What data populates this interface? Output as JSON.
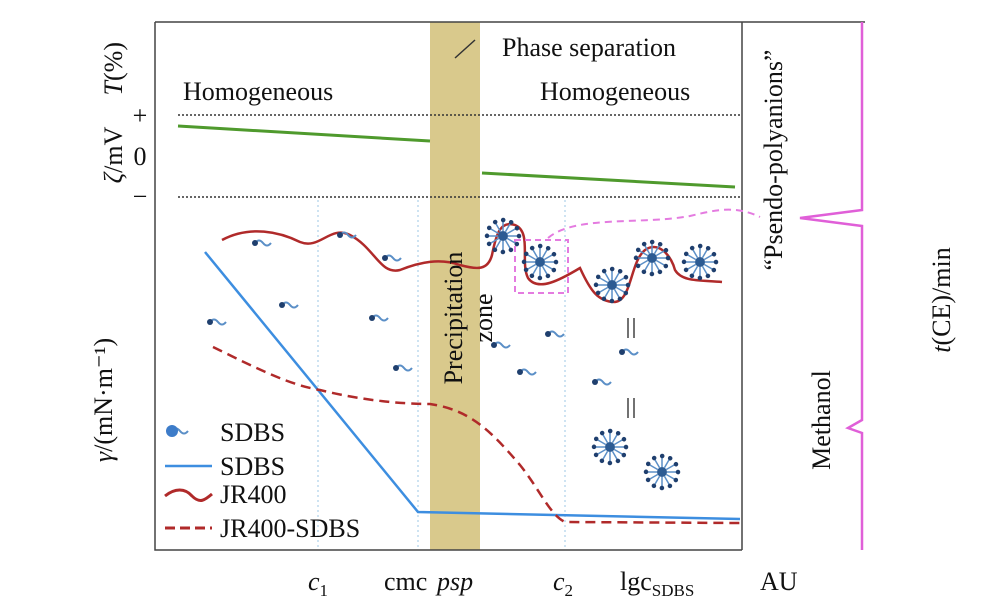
{
  "axes": {
    "transmittance": {
      "symbol": "T",
      "unit": "(%)"
    },
    "zeta": {
      "symbol": "ζ",
      "unit": "/mV",
      "ticks": [
        "+",
        "0",
        "−"
      ]
    },
    "surface_tension": {
      "symbol": "γ",
      "unit": "/(mN·m⁻¹)"
    },
    "migration_time": {
      "symbol": "t",
      "unit": "(CE)/min"
    }
  },
  "regions": {
    "left": "Homogeneous",
    "right": "Homogeneous",
    "phase_separation": "Phase separation",
    "precipitation": [
      "Precipitation",
      "zone"
    ]
  },
  "annotations": {
    "pseudo_polyanions": "“Psendo-polyanions”",
    "methanol": "Methanol"
  },
  "x_labels": {
    "c1": {
      "symbol": "c",
      "subscript": "1"
    },
    "cmc": "cmc",
    "psp": "psp",
    "c2": {
      "symbol": "c",
      "subscript": "2"
    },
    "lgc": {
      "symbol": "lgc",
      "subscript": "SDBS"
    },
    "au": "AU"
  },
  "legend": [
    "SDBS",
    "SDBS",
    "JR400",
    "JR400-SDBS"
  ]
}
